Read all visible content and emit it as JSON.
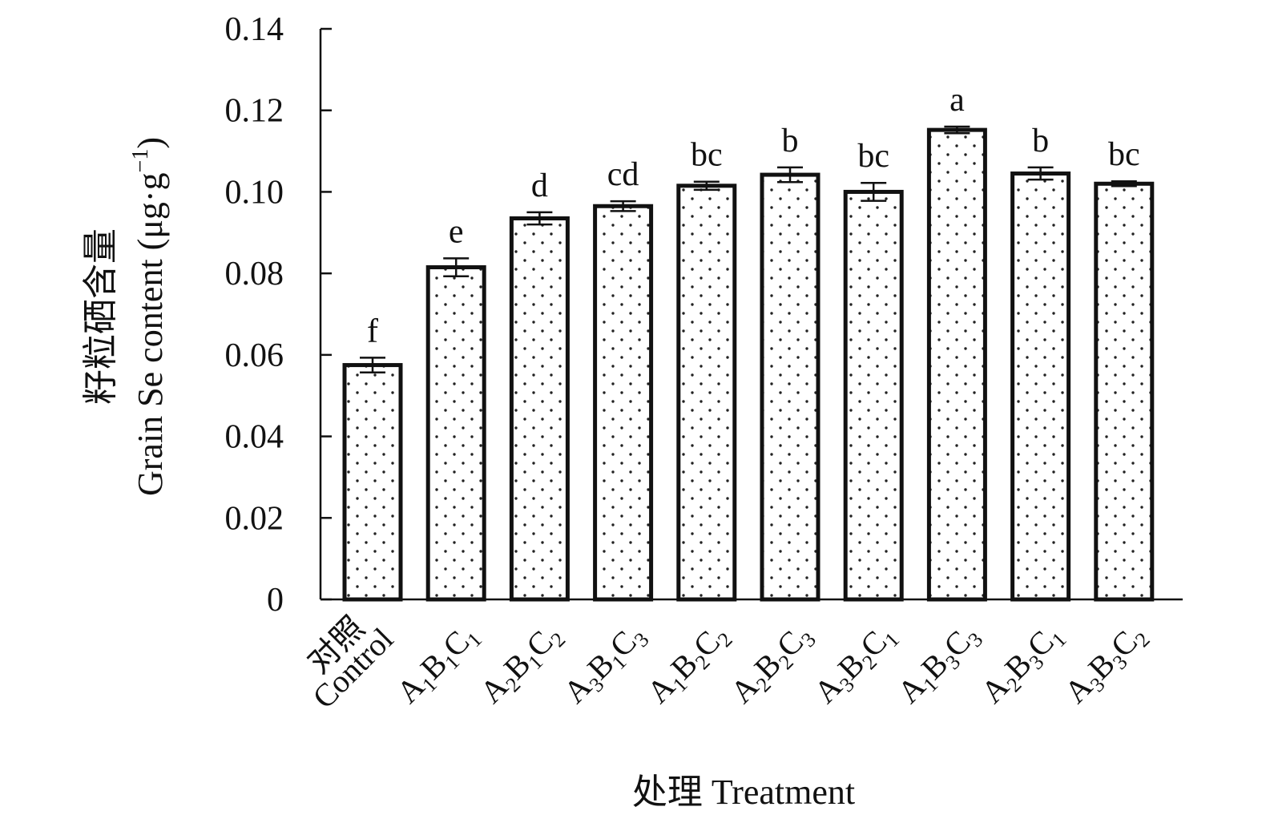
{
  "chart_data": {
    "type": "bar",
    "ylabel_line1": "籽粒硒含量",
    "ylabel_line2": "Grain Se content (μg·g",
    "ylabel_sup": "−1",
    "ylabel_end": ")",
    "xlabel": "处理 Treatment",
    "ylim": [
      0,
      0.14
    ],
    "yticks": [
      {
        "value": 0,
        "label": "0"
      },
      {
        "value": 0.02,
        "label": "0.02"
      },
      {
        "value": 0.04,
        "label": "0.04"
      },
      {
        "value": 0.06,
        "label": "0.06"
      },
      {
        "value": 0.08,
        "label": "0.08"
      },
      {
        "value": 0.1,
        "label": "0.10"
      },
      {
        "value": 0.12,
        "label": "0.12"
      },
      {
        "value": 0.14,
        "label": "0.14"
      }
    ],
    "categories": [
      {
        "parts": [
          {
            "t": "对照"
          }
        ],
        "parts2": [
          {
            "t": "Control"
          }
        ]
      },
      {
        "parts": [
          {
            "t": "A"
          },
          {
            "t": "1",
            "sub": true
          },
          {
            "t": "B"
          },
          {
            "t": "1",
            "sub": true
          },
          {
            "t": "C"
          },
          {
            "t": "1",
            "sub": true
          }
        ]
      },
      {
        "parts": [
          {
            "t": "A"
          },
          {
            "t": "2",
            "sub": true
          },
          {
            "t": "B"
          },
          {
            "t": "1",
            "sub": true
          },
          {
            "t": "C"
          },
          {
            "t": "2",
            "sub": true
          }
        ]
      },
      {
        "parts": [
          {
            "t": "A"
          },
          {
            "t": "3",
            "sub": true
          },
          {
            "t": "B"
          },
          {
            "t": "1",
            "sub": true
          },
          {
            "t": "C"
          },
          {
            "t": "3",
            "sub": true
          }
        ]
      },
      {
        "parts": [
          {
            "t": "A"
          },
          {
            "t": "1",
            "sub": true
          },
          {
            "t": "B"
          },
          {
            "t": "2",
            "sub": true
          },
          {
            "t": "C"
          },
          {
            "t": "2",
            "sub": true
          }
        ]
      },
      {
        "parts": [
          {
            "t": "A"
          },
          {
            "t": "2",
            "sub": true
          },
          {
            "t": "B"
          },
          {
            "t": "2",
            "sub": true
          },
          {
            "t": "C"
          },
          {
            "t": "3",
            "sub": true
          }
        ]
      },
      {
        "parts": [
          {
            "t": "A"
          },
          {
            "t": "3",
            "sub": true
          },
          {
            "t": "B"
          },
          {
            "t": "2",
            "sub": true
          },
          {
            "t": "C"
          },
          {
            "t": "1",
            "sub": true
          }
        ]
      },
      {
        "parts": [
          {
            "t": "A"
          },
          {
            "t": "1",
            "sub": true
          },
          {
            "t": "B"
          },
          {
            "t": "3",
            "sub": true
          },
          {
            "t": "C"
          },
          {
            "t": "3",
            "sub": true
          }
        ]
      },
      {
        "parts": [
          {
            "t": "A"
          },
          {
            "t": "2",
            "sub": true
          },
          {
            "t": "B"
          },
          {
            "t": "3",
            "sub": true
          },
          {
            "t": "C"
          },
          {
            "t": "1",
            "sub": true
          }
        ]
      },
      {
        "parts": [
          {
            "t": "A"
          },
          {
            "t": "3",
            "sub": true
          },
          {
            "t": "B"
          },
          {
            "t": "3",
            "sub": true
          },
          {
            "t": "C"
          },
          {
            "t": "2",
            "sub": true
          }
        ]
      }
    ],
    "values": [
      0.0575,
      0.0815,
      0.0935,
      0.0965,
      0.1015,
      0.1042,
      0.1,
      0.1152,
      0.1045,
      0.102
    ],
    "errors": [
      0.0018,
      0.0022,
      0.0015,
      0.0012,
      0.001,
      0.0018,
      0.0022,
      0.0008,
      0.0015,
      0.0006
    ],
    "significance": [
      "f",
      "e",
      "d",
      "cd",
      "bc",
      "b",
      "bc",
      "a",
      "b",
      "bc"
    ],
    "bar_fill": "dotted",
    "bar_edge_color": "#111111",
    "grid": false,
    "legend": "none"
  }
}
